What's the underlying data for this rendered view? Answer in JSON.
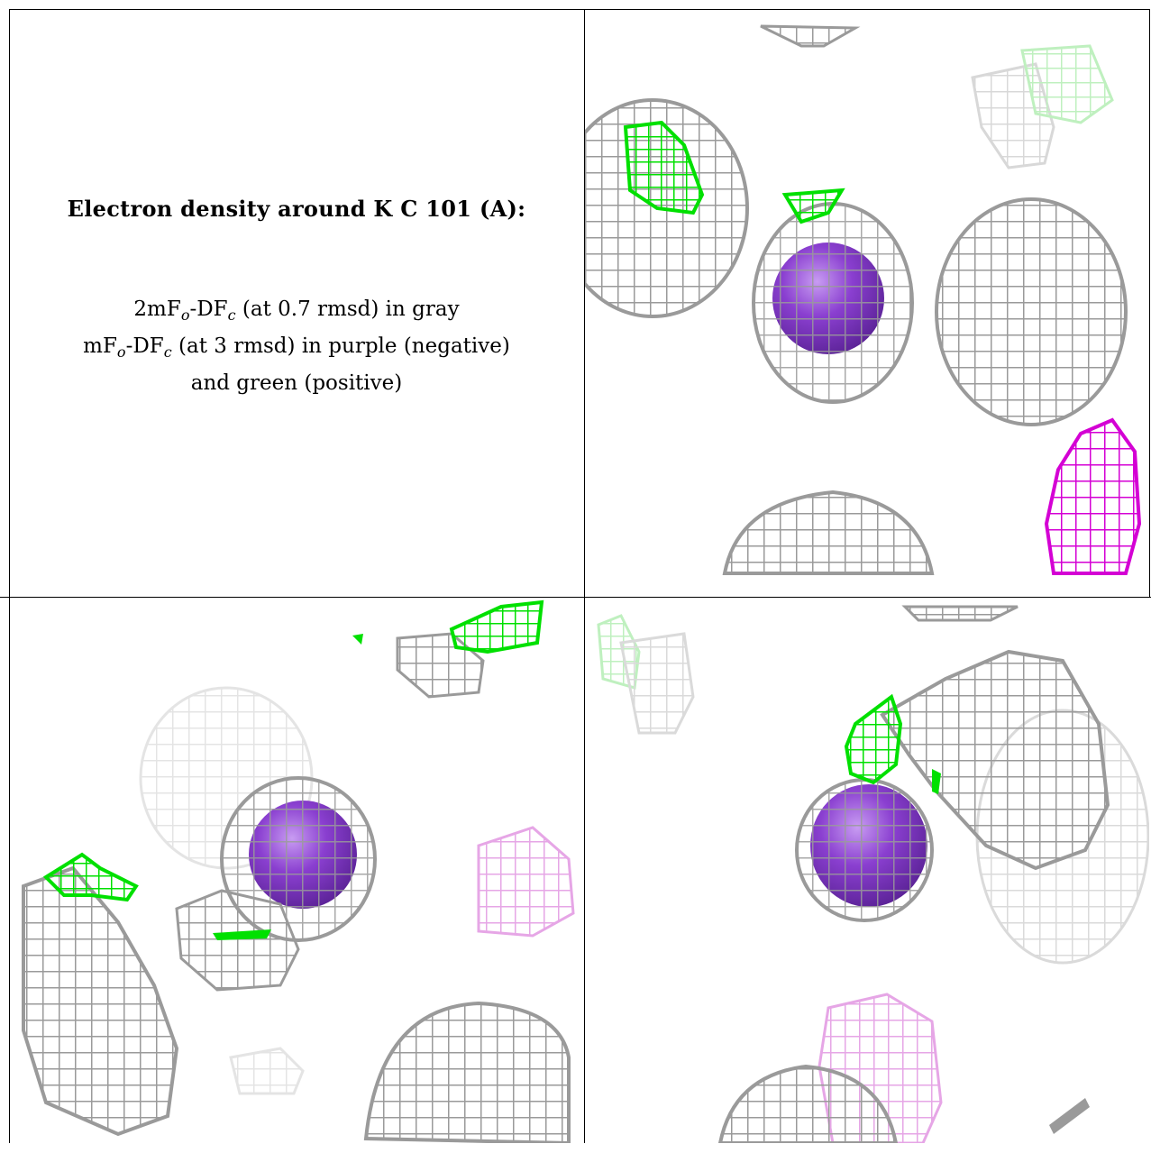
{
  "caption": {
    "title": "Electron density around K C 101 (A):",
    "line1_pre": "2mF",
    "line1_sub1": "o",
    "line1_mid": "-DF",
    "line1_sub2": "c",
    "line1_post": " (at 0.7 rmsd) in gray",
    "line2_pre": "mF",
    "line2_sub1": "o",
    "line2_mid": "-DF",
    "line2_sub2": "c",
    "line2_post": " (at 3 rmsd) in purple (negative)",
    "line3": "and green (positive)"
  },
  "colors": {
    "density_2fofc": "#9a9a9a",
    "density_negative": "#d400d4",
    "density_positive": "#00e000",
    "potassium_atom": "#8a3fd0"
  },
  "panels": [
    "view-top-right",
    "view-bottom-left",
    "view-bottom-right"
  ]
}
